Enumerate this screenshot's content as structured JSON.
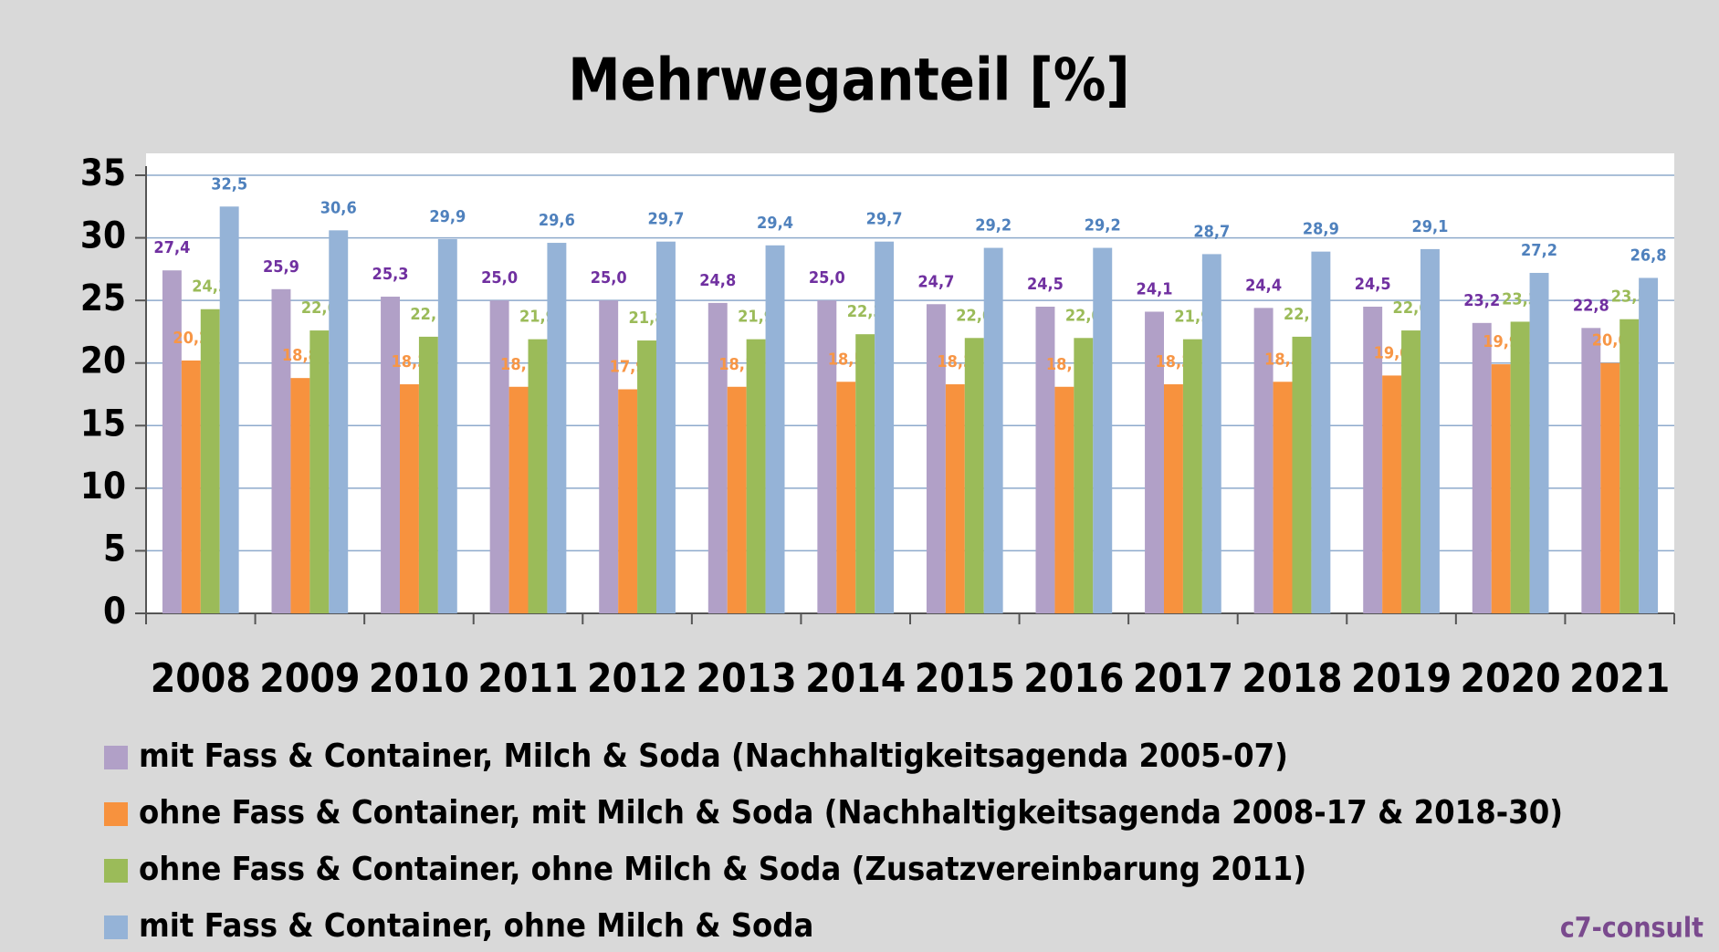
{
  "chart_data": {
    "type": "bar",
    "title": "Mehrweganteil [%]",
    "categories": [
      "2008",
      "2009",
      "2010",
      "2011",
      "2012",
      "2013",
      "2014",
      "2015",
      "2016",
      "2017",
      "2018",
      "2019",
      "2020",
      "2021"
    ],
    "series": [
      {
        "name": "mit Fass & Container, Milch & Soda (Nachhaltigkeitsagenda 2005-07)",
        "color": "#b1a0c7",
        "label_color": "#7030a0",
        "values": [
          27.4,
          25.9,
          25.3,
          25.0,
          25.0,
          24.8,
          25.0,
          24.7,
          24.5,
          24.1,
          24.4,
          24.5,
          23.2,
          22.8
        ],
        "value_labels": [
          "27,4",
          "25,9",
          "25,3",
          "25,0",
          "25,0",
          "24,8",
          "25,0",
          "24,7",
          "24,5",
          "24,1",
          "24,4",
          "24,5",
          "23,2",
          "22,8"
        ]
      },
      {
        "name": "ohne Fass & Container, mit Milch & Soda (Nachhaltigkeitsagenda 2008-17 & 2018-30)",
        "color": "#f7923e",
        "label_color": "#f79646",
        "values": [
          20.2,
          18.8,
          18.3,
          18.1,
          17.9,
          18.1,
          18.5,
          18.3,
          18.1,
          18.3,
          18.5,
          19.0,
          19.9,
          20.0
        ],
        "value_labels": [
          "20,2",
          "18,8",
          "18,3",
          "18,1",
          "17,9",
          "18,1",
          "18,5",
          "18,3",
          "18,1",
          "18,3",
          "18,5",
          "19,0",
          "19,9",
          "20,0"
        ]
      },
      {
        "name": "ohne Fass & Container, ohne Milch & Soda (Zusatzvereinbarung 2011)",
        "color": "#9bbb59",
        "label_color": "#9bbb59",
        "values": [
          24.3,
          22.6,
          22.1,
          21.9,
          21.8,
          21.9,
          22.3,
          22.0,
          22.0,
          21.9,
          22.1,
          22.6,
          23.3,
          23.5
        ],
        "value_labels": [
          "24,3",
          "22,6",
          "22,1",
          "21,9",
          "21,8",
          "21,9",
          "22,3",
          "22,0",
          "22,0",
          "21,9",
          "22,1",
          "22,6",
          "23,3",
          "23,5"
        ]
      },
      {
        "name": "mit Fass & Container, ohne Milch & Soda",
        "color": "#95b3d7",
        "label_color": "#4f81bd",
        "values": [
          32.5,
          30.6,
          29.9,
          29.6,
          29.7,
          29.4,
          29.7,
          29.2,
          29.2,
          28.7,
          28.9,
          29.1,
          27.2,
          26.8
        ],
        "value_labels": [
          "32,5",
          "30,6",
          "29,9",
          "29,6",
          "29,7",
          "29,4",
          "29,7",
          "29,2",
          "29,2",
          "28,7",
          "28,9",
          "29,1",
          "27,2",
          "26,8"
        ]
      }
    ],
    "ylim": [
      0,
      35
    ],
    "yticks": [
      0,
      5,
      10,
      15,
      20,
      25,
      30,
      35
    ],
    "grid": true,
    "grid_color": "#8eaacc",
    "logo": "c7-consult"
  }
}
